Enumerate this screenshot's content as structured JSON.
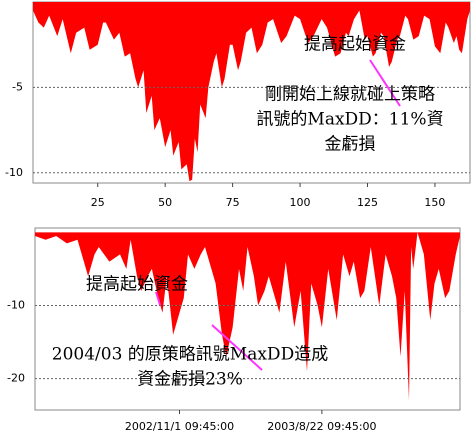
{
  "chart_data": [
    {
      "type": "area",
      "color": "#ff0000",
      "grid": true,
      "x": [
        1,
        3,
        5,
        7,
        10,
        12,
        15,
        17,
        20,
        22,
        25,
        27,
        28,
        31,
        33,
        35,
        37,
        39,
        40,
        42,
        43,
        45,
        46,
        48,
        50,
        52,
        53,
        55,
        56,
        58,
        59,
        60,
        61,
        62,
        63,
        65,
        66,
        68,
        69,
        71,
        72,
        74,
        75,
        77,
        78,
        80,
        82,
        84,
        86,
        88,
        90,
        93,
        95,
        98,
        100,
        103,
        105,
        108,
        110,
        113,
        115,
        117,
        118,
        120,
        122,
        124,
        125,
        127,
        128,
        130,
        131,
        133,
        134,
        136,
        137,
        139,
        140,
        142,
        144,
        146,
        148,
        150,
        152,
        154,
        155,
        157,
        158,
        159,
        160,
        162,
        163
      ],
      "values": [
        -0.5,
        -1.2,
        -1.5,
        -0.8,
        -2,
        -1,
        -3,
        -1.8,
        -1.5,
        -2.8,
        -2.5,
        -1.2,
        -1.2,
        -2.2,
        -1.8,
        -3.2,
        -3,
        -4.5,
        -5,
        -4,
        -6.5,
        -5.5,
        -7.5,
        -6.8,
        -8.5,
        -7.5,
        -9,
        -8.2,
        -9.8,
        -9.5,
        -10.5,
        -10.4,
        -8,
        -8.8,
        -6,
        -6.8,
        -5,
        -3.5,
        -3,
        -5,
        -4.5,
        -2.5,
        -2.5,
        -4,
        -3.5,
        -1.8,
        -1.5,
        -3,
        -2.5,
        -1.2,
        -1,
        -2.4,
        -2,
        -0.8,
        -1,
        -2.4,
        -2,
        -1,
        -1.5,
        -3.2,
        -3,
        -1.8,
        -2,
        -1,
        -0.5,
        -2.2,
        -2,
        -3.2,
        -3,
        -1.8,
        -2,
        -3.8,
        -3.5,
        -2.2,
        -2,
        -0.8,
        -1,
        -2.2,
        -2,
        -0.8,
        -1,
        -2.6,
        -3,
        -1.2,
        -1.5,
        -2.4,
        -2,
        -2.8,
        -3,
        -1,
        -0.5
      ],
      "xlim": [
        1,
        163
      ],
      "ylim": [
        -10.6,
        0
      ],
      "xticks": [
        25,
        50,
        75,
        100,
        125,
        150
      ],
      "yticks": [
        -5,
        -10
      ],
      "annotations": [
        {
          "lines": [
            "提高起始資金"
          ]
        },
        {
          "lines": [
            "剛開始上線就碰上策略",
            "訊號的MaxDD：11%資",
            "金虧損"
          ]
        }
      ]
    },
    {
      "type": "area",
      "color": "#ff0000",
      "grid": true,
      "x": [
        0,
        5,
        10,
        15,
        20,
        23,
        25,
        28,
        30,
        35,
        40,
        43,
        45,
        48,
        50,
        53,
        55,
        58,
        60,
        62,
        65,
        68,
        70,
        72,
        75,
        78,
        80,
        83,
        85,
        88,
        90,
        93,
        96,
        98,
        100,
        103,
        105,
        108,
        110,
        113,
        115,
        118,
        122,
        125,
        128,
        130,
        133,
        135,
        138,
        142,
        145,
        148,
        150,
        153,
        155,
        158,
        162,
        165,
        168,
        170,
        172,
        174,
        176,
        177,
        178,
        180,
        183,
        186,
        188,
        190,
        193,
        195,
        198,
        200
      ],
      "values": [
        -0.5,
        -1,
        -0.5,
        -1.5,
        -1,
        -4,
        -6,
        -3,
        -2,
        -4,
        -3,
        -5,
        -1,
        -6,
        -8,
        -6,
        -5,
        -9,
        -11,
        -6,
        -14,
        -11,
        -9,
        -3,
        -5,
        -3,
        -2,
        -5,
        -7,
        -14,
        -17,
        -13,
        -5,
        -8,
        -2,
        -6,
        -10,
        -8,
        -6,
        -9,
        -11,
        -4,
        -13,
        -8,
        -19,
        -7,
        -10,
        -13,
        -5,
        -12,
        -3,
        -6,
        -4,
        -9,
        -8,
        -2,
        -10,
        -3,
        -6,
        -9,
        -17,
        -8,
        -23,
        -2,
        -5,
        0,
        -3,
        -12,
        -7,
        -5,
        -9,
        -8,
        -3,
        -0.5
      ],
      "xlim": [
        0,
        200
      ],
      "ylim": [
        -24.3,
        0.6
      ],
      "xticks": [
        {
          "value": 68,
          "label": "2002/11/1 09:45:00"
        },
        {
          "value": 135,
          "label": "2003/8/22 09:45:00"
        }
      ],
      "yticks": [
        -10,
        -20
      ],
      "annotations": [
        {
          "lines": [
            "提高起始資金"
          ]
        },
        {
          "lines": [
            "2004/03 的原策略訊號MaxDD造成",
            "資金虧損23%"
          ]
        }
      ]
    }
  ]
}
